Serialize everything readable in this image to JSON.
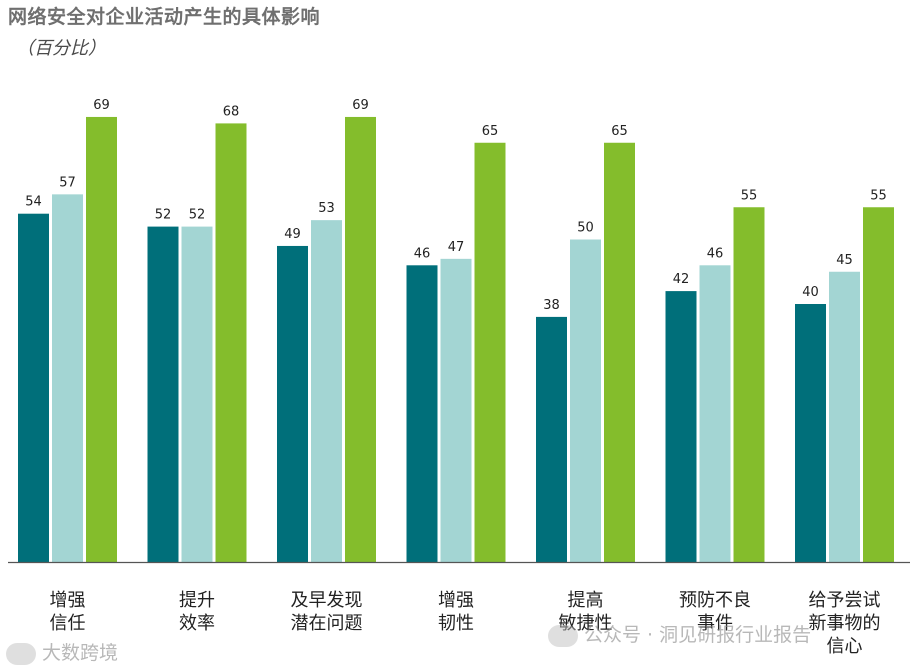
{
  "chart_data": {
    "type": "bar",
    "title": "网络安全对企业活动产生的具体影响",
    "subtitle": "（百分比）",
    "xlabel": "",
    "ylabel": "",
    "ylim": [
      0,
      80
    ],
    "grid": false,
    "categories": [
      [
        "增强",
        "信任"
      ],
      [
        "提升",
        "效率"
      ],
      [
        "及早发现",
        "潜在问题"
      ],
      [
        "增强",
        "韧性"
      ],
      [
        "提高",
        "敏捷性"
      ],
      [
        "预防不良",
        "事件"
      ],
      [
        "给予尝试",
        "新事物的",
        "信心"
      ]
    ],
    "series": [
      {
        "name": "series-1",
        "color": "#006f7a",
        "values": [
          54,
          52,
          49,
          46,
          38,
          42,
          40
        ]
      },
      {
        "name": "series-2",
        "color": "#a3d5d3",
        "values": [
          57,
          52,
          53,
          47,
          50,
          46,
          45
        ]
      },
      {
        "name": "series-3",
        "color": "#84bd2c",
        "values": [
          69,
          68,
          69,
          65,
          65,
          55,
          55
        ]
      }
    ]
  },
  "watermarks": {
    "left": "大数跨境",
    "right": "公众号 · 洞见研报行业报告"
  }
}
